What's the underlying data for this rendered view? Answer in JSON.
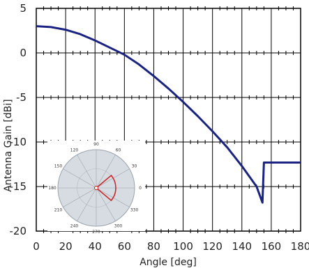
{
  "chart_data": {
    "type": "line",
    "xlabel": "Angle [deg]",
    "ylabel": "Antenna Gain [dBi]",
    "xlim": [
      0,
      180
    ],
    "ylim": [
      -20,
      5
    ],
    "x_ticks": [
      0,
      20,
      40,
      60,
      80,
      100,
      120,
      140,
      160,
      180
    ],
    "y_ticks": [
      5,
      0,
      -5,
      -10,
      -15,
      -20
    ],
    "grid": true,
    "colors": {
      "line": "#1a2480",
      "grid": "#000000",
      "inset_fill": "#d6dce2",
      "inset_beam": "#cc2222"
    },
    "series": [
      {
        "x": [
          0,
          10,
          20,
          30,
          40,
          50,
          60,
          70,
          80,
          90,
          100,
          110,
          120,
          130,
          140,
          150,
          154,
          155,
          180
        ],
        "y": [
          3,
          2.9,
          2.6,
          2.1,
          1.4,
          0.6,
          -0.2,
          -1.3,
          -2.6,
          -4.0,
          -5.5,
          -7.1,
          -8.8,
          -10.6,
          -12.7,
          -15.0,
          -16.8,
          -12.3,
          -12.3
        ]
      }
    ],
    "inset": {
      "type": "polar",
      "angle_labels": [
        "90",
        "60",
        "30",
        "0",
        "330",
        "300",
        "270",
        "240",
        "210",
        "180",
        "150",
        "120"
      ]
    }
  }
}
